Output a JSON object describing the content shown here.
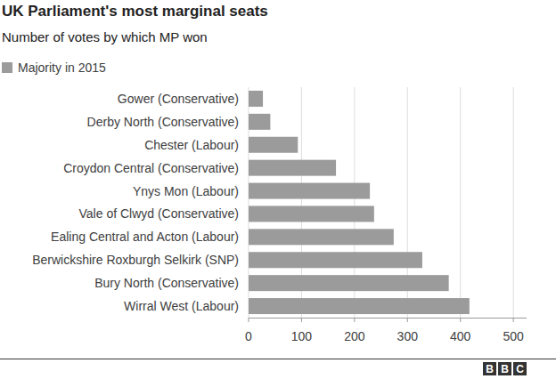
{
  "chart_data": {
    "type": "bar",
    "orientation": "horizontal",
    "title": "UK Parliament's most marginal seats",
    "subtitle": "Number of votes by which MP won",
    "categories": [
      "Gower (Conservative)",
      "Derby North (Conservative)",
      "Chester (Labour)",
      "Croydon Central (Conservative)",
      "Ynys Mon (Labour)",
      "Vale of Clwyd (Conservative)",
      "Ealing Central and Acton (Labour)",
      "Berwickshire Roxburgh Selkirk (SNP)",
      "Bury North (Conservative)",
      "Wirral West (Labour)"
    ],
    "series": [
      {
        "name": "Majority in 2015",
        "color": "#9b9b9b",
        "values": [
          27,
          41,
          93,
          165,
          229,
          237,
          274,
          328,
          378,
          417
        ]
      }
    ],
    "xlim": [
      0,
      525
    ],
    "xticks": [
      0,
      100,
      200,
      300,
      400,
      500
    ],
    "grid": true,
    "legend": "top-left",
    "footer": "BBC"
  }
}
